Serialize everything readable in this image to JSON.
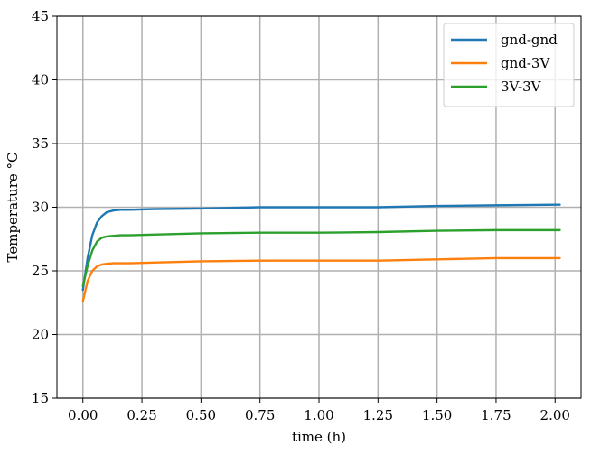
{
  "chart_data": {
    "type": "line",
    "title": "",
    "xlabel": "time (h)",
    "ylabel": "Temperature °C",
    "xlim": [
      -0.11,
      2.11
    ],
    "ylim": [
      15,
      45
    ],
    "xticks": [
      0.0,
      0.25,
      0.5,
      0.75,
      1.0,
      1.25,
      1.5,
      1.75,
      2.0
    ],
    "xtick_labels": [
      "0.00",
      "0.25",
      "0.50",
      "0.75",
      "1.00",
      "1.25",
      "1.50",
      "1.75",
      "2.00"
    ],
    "yticks": [
      15,
      20,
      25,
      30,
      35,
      40,
      45
    ],
    "ytick_labels": [
      "15",
      "20",
      "25",
      "30",
      "35",
      "40",
      "45"
    ],
    "grid": true,
    "legend_position": "top-right",
    "series": [
      {
        "name": "gnd-gnd",
        "color": "#1f77b4",
        "x": [
          0.0,
          0.02,
          0.04,
          0.06,
          0.08,
          0.1,
          0.13,
          0.16,
          0.2,
          0.3,
          0.5,
          0.75,
          1.0,
          1.25,
          1.5,
          1.75,
          2.0,
          2.02
        ],
        "y": [
          23.5,
          26.0,
          27.8,
          28.8,
          29.3,
          29.6,
          29.75,
          29.8,
          29.8,
          29.85,
          29.9,
          30.0,
          30.0,
          30.0,
          30.1,
          30.15,
          30.2,
          30.2
        ]
      },
      {
        "name": "gnd-3V",
        "color": "#ff7f0e",
        "x": [
          0.0,
          0.02,
          0.04,
          0.06,
          0.08,
          0.1,
          0.13,
          0.16,
          0.2,
          0.3,
          0.5,
          0.75,
          1.0,
          1.25,
          1.5,
          1.75,
          2.0,
          2.02
        ],
        "y": [
          22.6,
          24.2,
          25.0,
          25.35,
          25.5,
          25.55,
          25.6,
          25.6,
          25.6,
          25.65,
          25.75,
          25.8,
          25.8,
          25.8,
          25.9,
          26.0,
          26.0,
          26.0
        ]
      },
      {
        "name": "3V-3V",
        "color": "#2ca02c",
        "x": [
          0.0,
          0.02,
          0.04,
          0.06,
          0.08,
          0.1,
          0.13,
          0.16,
          0.2,
          0.3,
          0.5,
          0.75,
          1.0,
          1.25,
          1.5,
          1.75,
          2.0,
          2.02
        ],
        "y": [
          23.8,
          25.4,
          26.6,
          27.3,
          27.6,
          27.7,
          27.75,
          27.8,
          27.8,
          27.85,
          27.95,
          28.0,
          28.0,
          28.05,
          28.15,
          28.2,
          28.2,
          28.2
        ]
      }
    ]
  }
}
